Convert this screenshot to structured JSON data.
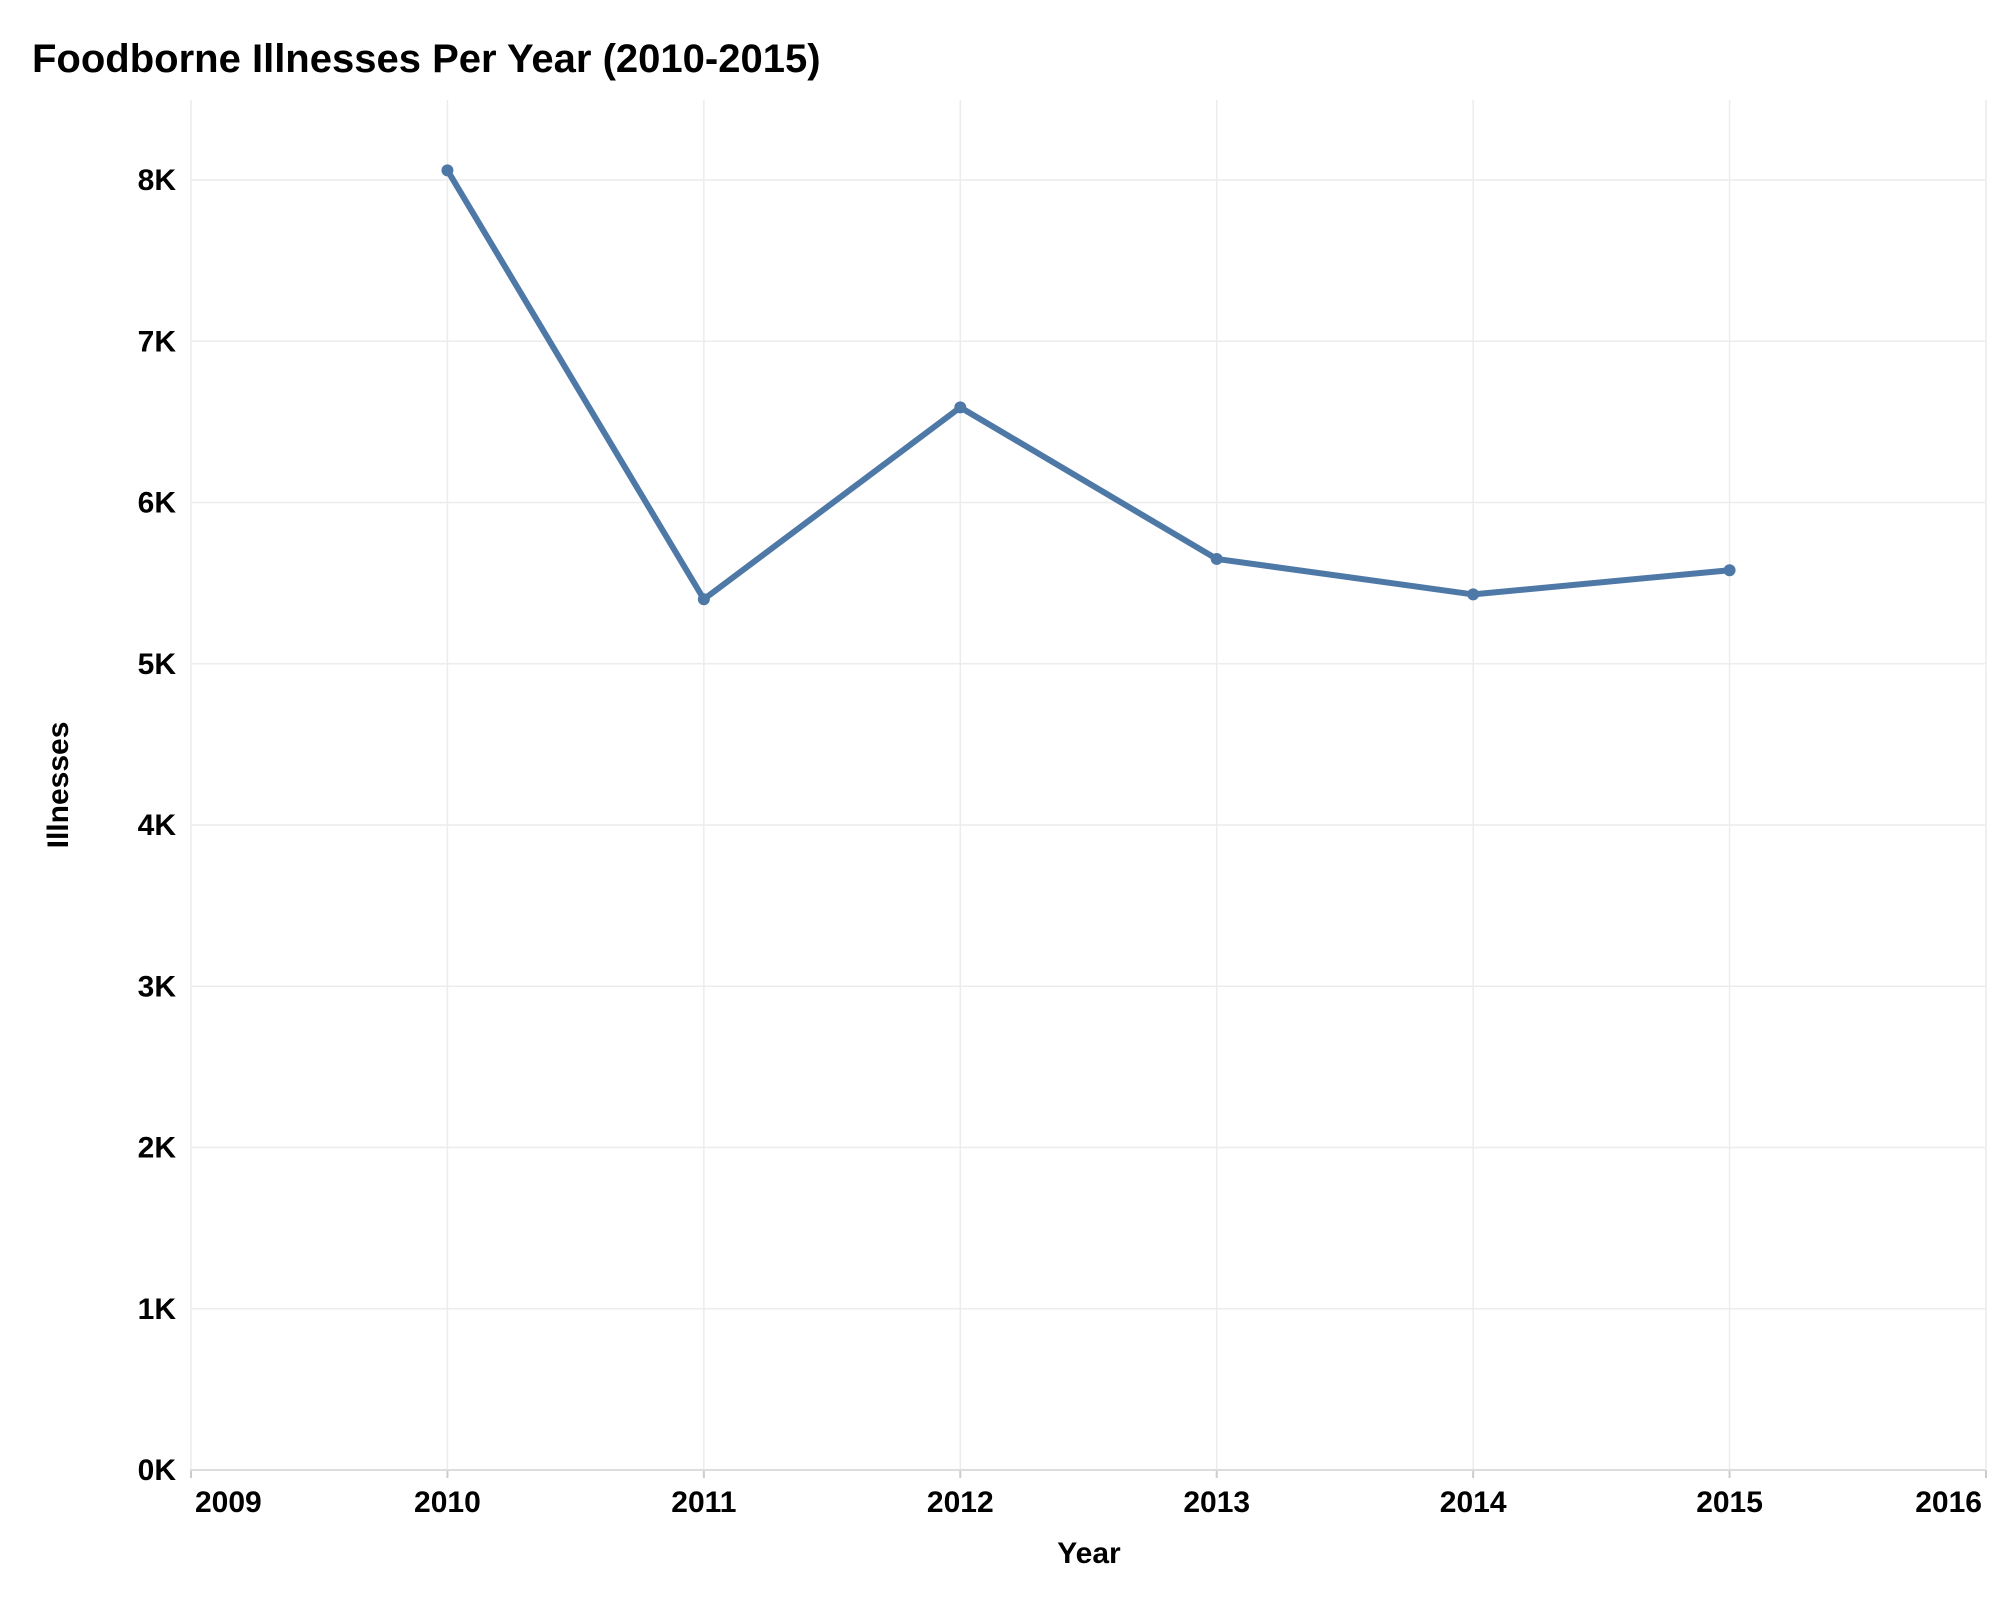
{
  "chart_data": {
    "type": "line",
    "title": "Foodborne Illnesses Per Year (2010-2015)",
    "xlabel": "Year",
    "ylabel": "Illnesses",
    "x": [
      2010,
      2011,
      2012,
      2013,
      2014,
      2015
    ],
    "series": [
      {
        "values": [
          8060,
          5400,
          6590,
          5650,
          5430,
          5580
        ]
      }
    ],
    "xlim": [
      2009,
      2016
    ],
    "ylim": [
      0,
      8500
    ],
    "xticks": [
      2009,
      2010,
      2011,
      2012,
      2013,
      2014,
      2015,
      2016
    ],
    "xtick_labels": [
      "2009",
      "2010",
      "2011",
      "2012",
      "2013",
      "2014",
      "2015",
      "2016"
    ],
    "yticks": [
      0,
      1000,
      2000,
      3000,
      4000,
      5000,
      6000,
      7000,
      8000
    ],
    "ytick_labels": [
      "0K",
      "1K",
      "2K",
      "3K",
      "4K",
      "5K",
      "6K",
      "7K",
      "8K"
    ],
    "grid": true,
    "line_color": "#4e79a7",
    "marker": "circle"
  }
}
